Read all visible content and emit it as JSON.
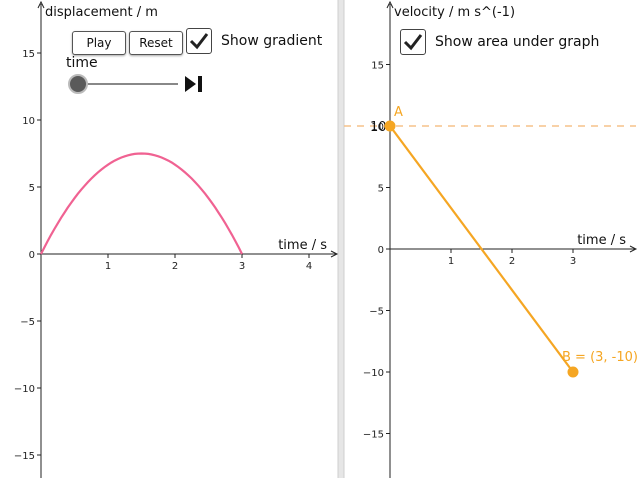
{
  "controls": {
    "play_label": "Play",
    "reset_label": "Reset",
    "show_gradient_label": "Show gradient",
    "show_gradient_checked": true,
    "show_area_label": "Show area under graph",
    "show_area_checked": true,
    "slider_label": "time",
    "slider_value_fraction": 0,
    "play_pause_icon": "step-to-end-icon"
  },
  "chart_data": [
    {
      "type": "line",
      "xlabel": "time / s",
      "ylabel": "displacement / m",
      "xlim": [
        0,
        4.4
      ],
      "ylim": [
        -16.5,
        19.5
      ],
      "xticks": [
        1,
        2,
        3,
        4
      ],
      "yticks": [
        -15,
        -10,
        -5,
        0,
        5,
        10,
        15
      ],
      "series": [
        {
          "x": [
            0,
            0.25,
            0.5,
            0.75,
            1,
            1.25,
            1.5,
            1.75,
            2,
            2.25,
            2.5,
            2.75,
            3
          ],
          "y": [
            0,
            2.19,
            3.75,
            5.63,
            6.67,
            7.29,
            7.5,
            7.29,
            6.67,
            5.63,
            3.75,
            2.19,
            0
          ],
          "color": "#f06292"
        }
      ],
      "grid": false
    },
    {
      "type": "line",
      "xlabel": "time / s",
      "ylabel": "velocity / m s^(-1)",
      "xlim": [
        0,
        4
      ],
      "ylim": [
        -18.5,
        19.5
      ],
      "xticks": [
        1,
        2,
        3
      ],
      "yticks": [
        -15,
        -10,
        -5,
        0,
        5,
        10,
        15
      ],
      "series": [
        {
          "x": [
            0,
            3
          ],
          "y": [
            10,
            -10
          ],
          "color": "#f5a623"
        }
      ],
      "points": [
        {
          "name": "A",
          "x": 0,
          "y": 10,
          "label": "A"
        },
        {
          "name": "B",
          "x": 3,
          "y": -10,
          "label": "B = (3, -10)"
        }
      ],
      "reference_line": {
        "y": 10,
        "label": "10",
        "style": "dashed"
      },
      "grid": false
    }
  ]
}
